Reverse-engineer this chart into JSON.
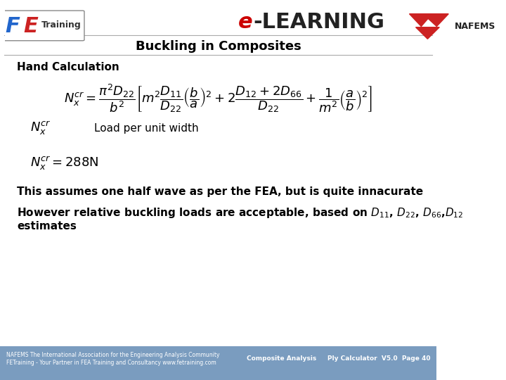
{
  "title": "Buckling in Composites",
  "elearning_text": "e-LEARNING",
  "header_line_color": "#cccccc",
  "background_color": "#ffffff",
  "footer_bg_color": "#7a9cbf",
  "footer_text_left": "NAFEMS The International Association for the Engineering Analysis Community\nFETraining - Your Partner in FEA Training and Consultancy www.fetraining.com",
  "footer_text_right": "Composite Analysis     Ply Calculator  V5.0  Page 40",
  "hand_calc_label": "Hand Calculation",
  "formula_main": "$N_x^{cr} = \\dfrac{\\pi^2 D_{22}}{b^2}\\left[ m^2 \\dfrac{D_{11}}{D_{22}}\\left(\\dfrac{b}{a}\\right)^2 + 2\\dfrac{D_{12}+2D_{66}}{D_{22}} + \\dfrac{1}{m^2}\\left(\\dfrac{a}{b}\\right)^2 \\right]$",
  "nx_label": "$N_x^{cr}$",
  "load_per_unit_width": "Load per unit width",
  "result_formula": "$N_x^{cr} = 288\\text{N}$",
  "text_line1": "This assumes one half wave as per the FEA, but is quite innacurate",
  "text_line2": "However relative buckling loads are acceptable, based on $D_{11}$, $D_{22}$, $D_{66}$, $D_{12}$",
  "text_line3": "estimates",
  "title_fontsize": 13,
  "body_fontsize": 11,
  "formula_fontsize": 14,
  "red_color": "#cc0000",
  "dark_color": "#222222"
}
